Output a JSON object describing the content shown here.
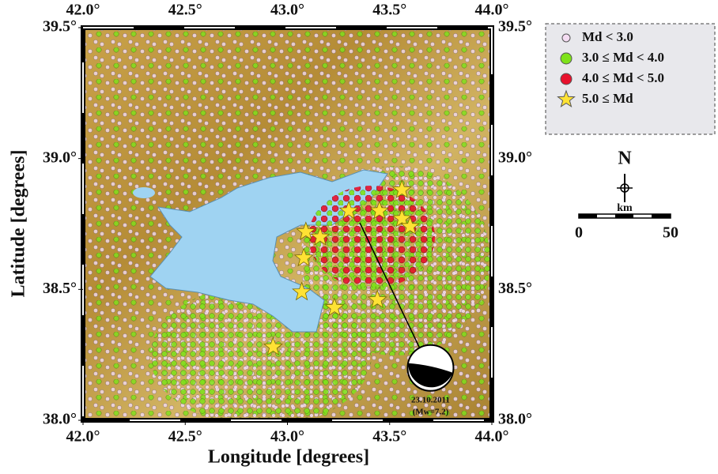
{
  "chart_data": {
    "type": "map",
    "xlabel": "Longitude [degrees]",
    "ylabel": "Latitude [degrees]",
    "xlim": [
      42,
      44
    ],
    "ylim": [
      38,
      39.5
    ],
    "xticks": [
      {
        "value": 42,
        "label": "42.0°"
      },
      {
        "value": 42.5,
        "label": "42.5°"
      },
      {
        "value": 43,
        "label": "43.0°"
      },
      {
        "value": 43.5,
        "label": "43.5°"
      },
      {
        "value": 44,
        "label": "44.0°"
      }
    ],
    "yticks": [
      {
        "value": 38,
        "label": "38.0°"
      },
      {
        "value": 38.5,
        "label": "38.5°"
      },
      {
        "value": 39,
        "label": "39.0°"
      },
      {
        "value": 39.5,
        "label": "39.5°"
      }
    ],
    "series": [
      {
        "name": "Md < 3.0",
        "color": "#f4dcf2",
        "marker": "circle"
      },
      {
        "name": "3.0 ≤ Md < 4.0",
        "color": "#7ee21a",
        "marker": "circle"
      },
      {
        "name": "4.0 ≤ Md < 5.0",
        "color": "#e8112d",
        "marker": "circle"
      },
      {
        "name": "5.0 ≤ Md",
        "color": "#ffe234",
        "marker": "star",
        "x": [
          43.56,
          43.3,
          43.45,
          43.56,
          43.6,
          43.09,
          43.16,
          43.08,
          43.07,
          43.23,
          43.44,
          42.93
        ],
        "y": [
          38.88,
          38.8,
          38.8,
          38.77,
          38.74,
          38.72,
          38.7,
          38.62,
          38.49,
          38.43,
          38.46,
          38.28
        ]
      }
    ],
    "event": {
      "x": 43.7,
      "y": 38.2,
      "date": "23.10.2011",
      "magnitude": "(Mw=7.2)"
    },
    "north": "N",
    "scale_bar": {
      "unit": "km",
      "ticks": [
        0,
        50
      ]
    }
  }
}
